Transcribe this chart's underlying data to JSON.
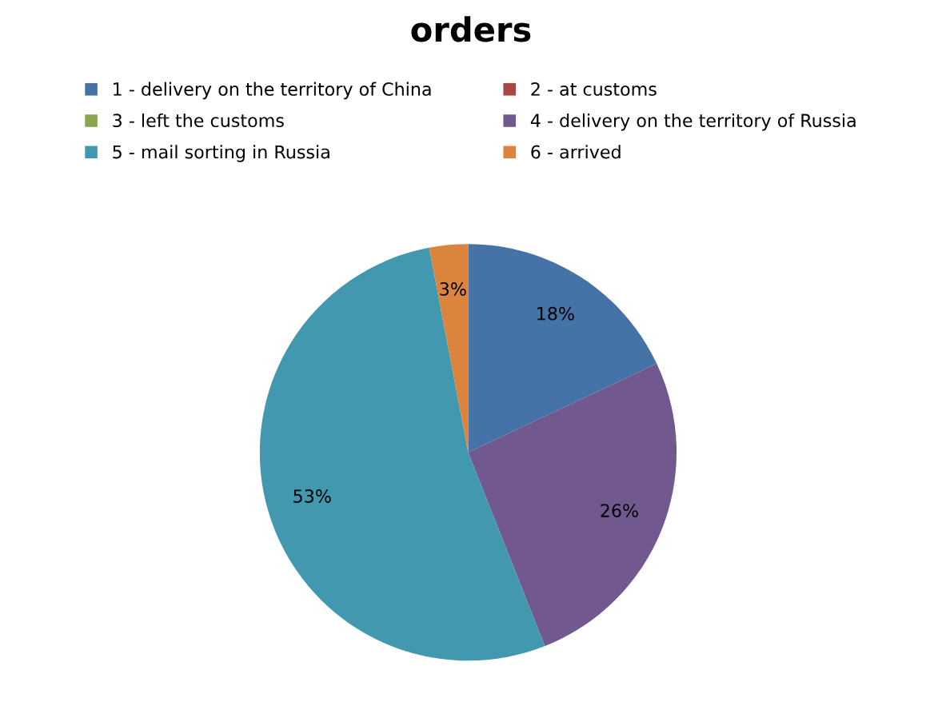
{
  "chart_data": {
    "type": "pie",
    "title": "orders",
    "categories": [
      "1 - delivery on the territory of China",
      "2 - at customs",
      "3 - left the customs",
      "4 - delivery on the territory of Russia",
      "5 - mail sorting in Russia",
      "6 - arrived"
    ],
    "values": [
      18,
      0,
      0,
      26,
      53,
      3
    ],
    "colors": [
      "#4572a7",
      "#aa4643",
      "#89a54e",
      "#71588f",
      "#4198af",
      "#db843d"
    ],
    "value_labels": [
      "18%",
      null,
      null,
      "26%",
      "53%",
      "3%"
    ],
    "legend": "top"
  }
}
